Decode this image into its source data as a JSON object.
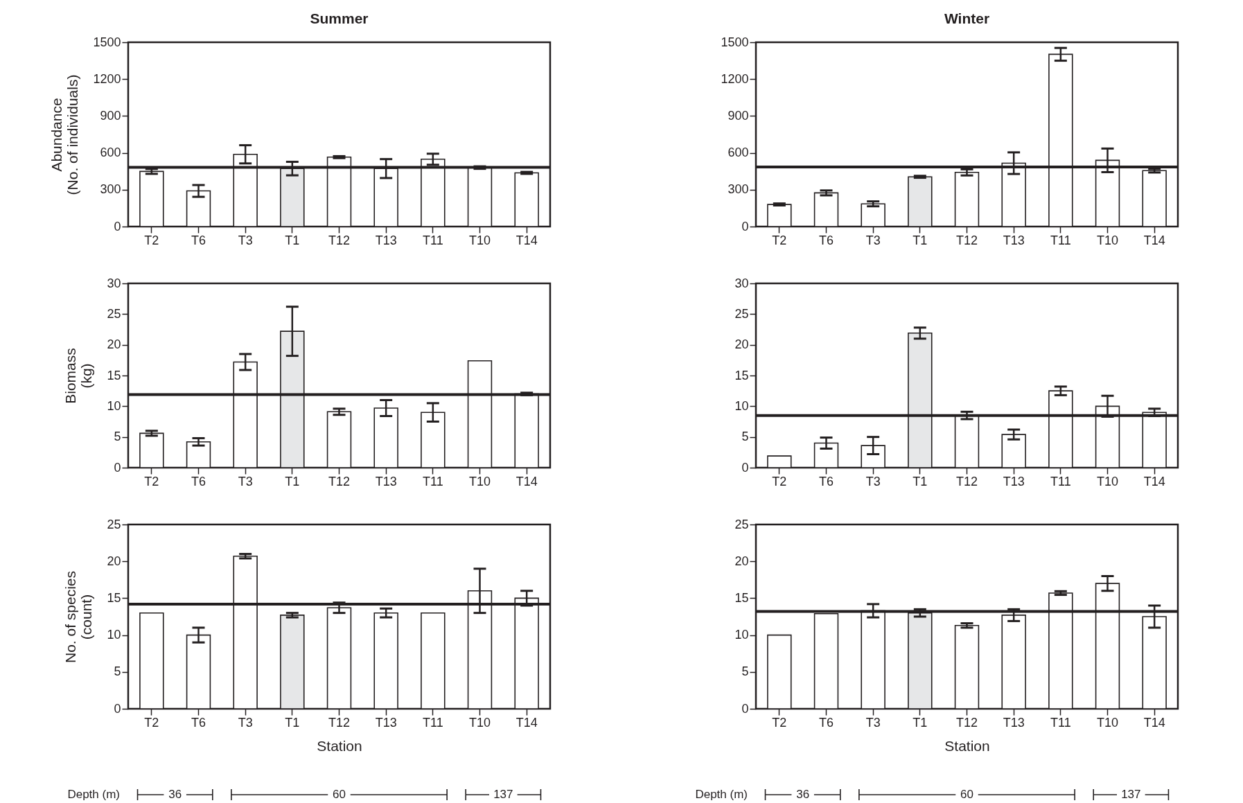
{
  "chart_data": [
    {
      "type": "bar",
      "title": "Summer",
      "ylabel": "Abundance\n(No. of individuals)",
      "categories": [
        "T2",
        "T6",
        "T3",
        "T1",
        "T12",
        "T13",
        "T11",
        "T10",
        "T14"
      ],
      "values": [
        449,
        290,
        588,
        472,
        565,
        472,
        548,
        480,
        437
      ],
      "errors": [
        20,
        48,
        74,
        55,
        8,
        77,
        45,
        10,
        8
      ],
      "colors": [
        "#ffffff",
        "#ffffff",
        "#ffffff",
        "#e6e7e8",
        "#ffffff",
        "#ffffff",
        "#ffffff",
        "#ffffff",
        "#ffffff"
      ],
      "ylim": [
        0,
        1500
      ],
      "yticks": [
        0,
        300,
        600,
        900,
        1200,
        1500
      ],
      "ref_lines": [
        {
          "axis": "y",
          "value": 482,
          "color": "#231f20"
        }
      ]
    },
    {
      "type": "bar",
      "title": "Winter",
      "categories": [
        "T2",
        "T6",
        "T3",
        "T1",
        "T12",
        "T13",
        "T11",
        "T10",
        "T14"
      ],
      "values": [
        180,
        274,
        185,
        405,
        441,
        516,
        1402,
        539,
        455
      ],
      "errors": [
        8,
        20,
        20,
        8,
        25,
        88,
        52,
        96,
        15
      ],
      "colors": [
        "#ffffff",
        "#ffffff",
        "#ffffff",
        "#e6e7e8",
        "#ffffff",
        "#ffffff",
        "#ffffff",
        "#ffffff",
        "#ffffff"
      ],
      "ylim": [
        0,
        1500
      ],
      "yticks": [
        0,
        300,
        600,
        900,
        1200,
        1500
      ],
      "ref_lines": [
        {
          "axis": "y",
          "value": 485,
          "color": "#231f20"
        }
      ]
    },
    {
      "type": "bar",
      "ylabel": "Biomass\n(kg)",
      "categories": [
        "T2",
        "T6",
        "T3",
        "T1",
        "T12",
        "T13",
        "T11",
        "T10",
        "T14"
      ],
      "values": [
        5.6,
        4.2,
        17.2,
        22.2,
        9.1,
        9.7,
        9.0,
        17.4,
        12.0
      ],
      "errors": [
        0.4,
        0.6,
        1.3,
        4.0,
        0.5,
        1.3,
        1.5,
        null,
        0.2
      ],
      "colors": [
        "#ffffff",
        "#ffffff",
        "#ffffff",
        "#e6e7e8",
        "#ffffff",
        "#ffffff",
        "#ffffff",
        "#ffffff",
        "#ffffff"
      ],
      "ylim": [
        0,
        30
      ],
      "yticks": [
        0,
        5,
        10,
        15,
        20,
        25,
        30
      ],
      "ref_lines": [
        {
          "axis": "y",
          "value": 11.9,
          "color": "#231f20"
        }
      ]
    },
    {
      "type": "bar",
      "categories": [
        "T2",
        "T6",
        "T3",
        "T1",
        "T12",
        "T13",
        "T11",
        "T10",
        "T14"
      ],
      "values": [
        1.9,
        4.0,
        3.6,
        21.9,
        8.5,
        5.4,
        12.5,
        10.0,
        9.0
      ],
      "errors": [
        null,
        0.9,
        1.4,
        0.9,
        0.6,
        0.8,
        0.7,
        1.7,
        0.6
      ],
      "colors": [
        "#ffffff",
        "#ffffff",
        "#ffffff",
        "#e6e7e8",
        "#ffffff",
        "#ffffff",
        "#ffffff",
        "#ffffff",
        "#ffffff"
      ],
      "ylim": [
        0,
        30
      ],
      "yticks": [
        0,
        5,
        10,
        15,
        20,
        25,
        30
      ],
      "ref_lines": [
        {
          "axis": "y",
          "value": 8.5,
          "color": "#231f20"
        }
      ]
    },
    {
      "type": "bar",
      "ylabel": "No. of species\n(count)",
      "xlabel": "Station",
      "categories": [
        "T2",
        "T6",
        "T3",
        "T1",
        "T12",
        "T13",
        "T11",
        "T10",
        "T14"
      ],
      "values": [
        13.0,
        10.0,
        20.7,
        12.7,
        13.7,
        13.0,
        13.0,
        16.0,
        15.0
      ],
      "errors": [
        null,
        1.0,
        0.3,
        0.3,
        0.7,
        0.6,
        null,
        3.0,
        1.0
      ],
      "colors": [
        "#ffffff",
        "#ffffff",
        "#ffffff",
        "#e6e7e8",
        "#ffffff",
        "#ffffff",
        "#ffffff",
        "#ffffff",
        "#ffffff"
      ],
      "ylim": [
        0,
        25
      ],
      "yticks": [
        0,
        5,
        10,
        15,
        20,
        25
      ],
      "ref_lines": [
        {
          "axis": "y",
          "value": 14.2,
          "color": "#231f20"
        }
      ],
      "annotations": [
        "Depth (m)",
        "36",
        "60",
        "137"
      ]
    },
    {
      "type": "bar",
      "xlabel": "Station",
      "categories": [
        "T2",
        "T6",
        "T3",
        "T1",
        "T12",
        "T13",
        "T11",
        "T10",
        "T14"
      ],
      "values": [
        10.0,
        12.9,
        13.3,
        13.0,
        11.3,
        12.7,
        15.7,
        17.0,
        12.5
      ],
      "errors": [
        null,
        null,
        0.9,
        0.5,
        0.3,
        0.8,
        0.25,
        1.0,
        1.5
      ],
      "colors": [
        "#ffffff",
        "#ffffff",
        "#ffffff",
        "#e6e7e8",
        "#ffffff",
        "#ffffff",
        "#ffffff",
        "#ffffff",
        "#ffffff"
      ],
      "ylim": [
        0,
        25
      ],
      "yticks": [
        0,
        5,
        10,
        15,
        20,
        25
      ],
      "ref_lines": [
        {
          "axis": "y",
          "value": 13.2,
          "color": "#231f20"
        }
      ],
      "annotations": [
        "Depth (m)",
        "36",
        "60",
        "137"
      ]
    }
  ]
}
